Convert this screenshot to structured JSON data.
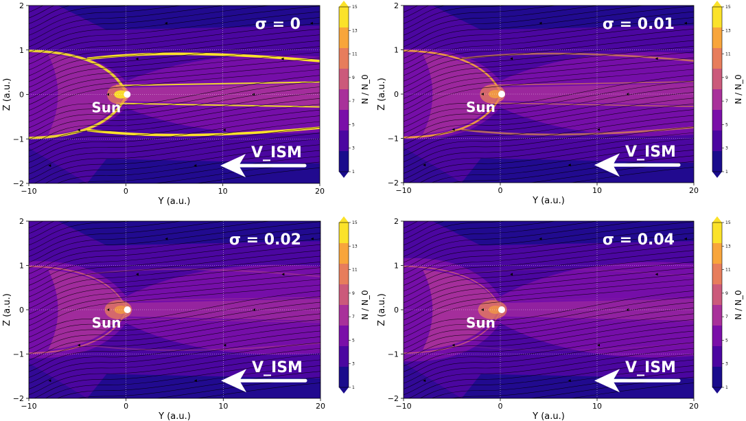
{
  "chart_data": [
    {
      "type": "heatmap",
      "title": "σ = 0",
      "xlabel": "Y (a.u.)",
      "ylabel": "Z (a.u.)",
      "xlim": [
        -10,
        20
      ],
      "ylim": [
        -2,
        2
      ],
      "xticks": [
        "−10",
        "0",
        "10",
        "20"
      ],
      "yticks": [
        "−2",
        "−1",
        "0",
        "1",
        "2"
      ],
      "sun_label": "Sun",
      "sun_position": [
        0,
        0
      ],
      "flow_label": "V_ISM",
      "colorbar": {
        "label": "N / N_0",
        "ticks": [
          "1",
          "3",
          "5",
          "7",
          "9",
          "11",
          "13",
          "15"
        ],
        "levels": [
          1,
          3,
          5,
          7,
          9,
          11,
          13,
          15
        ]
      },
      "sharpness": 1.0,
      "spread": 0.0
    },
    {
      "type": "heatmap",
      "title": "σ = 0.01",
      "xlabel": "Y (a.u.)",
      "ylabel": "Z (a.u.)",
      "xlim": [
        -10,
        20
      ],
      "ylim": [
        -2,
        2
      ],
      "xticks": [
        "−10",
        "0",
        "10",
        "20"
      ],
      "yticks": [
        "−2",
        "−1",
        "0",
        "1",
        "2"
      ],
      "sun_label": "Sun",
      "sun_position": [
        0,
        0
      ],
      "flow_label": "V_ISM",
      "colorbar": {
        "label": "N / N_0",
        "ticks": [
          "1",
          "3",
          "5",
          "7",
          "9",
          "11",
          "13",
          "15"
        ],
        "levels": [
          1,
          3,
          5,
          7,
          9,
          11,
          13,
          15
        ]
      },
      "sharpness": 0.6,
      "spread": 0.3
    },
    {
      "type": "heatmap",
      "title": "σ = 0.02",
      "xlabel": "Y (a.u.)",
      "ylabel": "Z (a.u.)",
      "xlim": [
        -10,
        20
      ],
      "ylim": [
        -2,
        2
      ],
      "xticks": [
        "−10",
        "0",
        "10",
        "20"
      ],
      "yticks": [
        "−2",
        "−1",
        "0",
        "1",
        "2"
      ],
      "sun_label": "Sun",
      "sun_position": [
        0,
        0
      ],
      "flow_label": "V_ISM",
      "colorbar": {
        "label": "N / N_0",
        "ticks": [
          "1",
          "3",
          "5",
          "7",
          "9",
          "11",
          "13",
          "15"
        ],
        "levels": [
          1,
          3,
          5,
          7,
          9,
          11,
          13,
          15
        ]
      },
      "sharpness": 0.35,
      "spread": 0.6
    },
    {
      "type": "heatmap",
      "title": "σ = 0.04",
      "xlabel": "Y (a.u.)",
      "ylabel": "Z (a.u.)",
      "xlim": [
        -10,
        20
      ],
      "ylim": [
        -2,
        2
      ],
      "xticks": [
        "−10",
        "0",
        "10",
        "20"
      ],
      "yticks": [
        "−2",
        "−1",
        "0",
        "1",
        "2"
      ],
      "sun_label": "Sun",
      "sun_position": [
        0,
        0
      ],
      "flow_label": "V_ISM",
      "colorbar": {
        "label": "N / N_0",
        "ticks": [
          "1",
          "3",
          "5",
          "7",
          "9",
          "11",
          "13",
          "15"
        ],
        "levels": [
          1,
          3,
          5,
          7,
          9,
          11,
          13,
          15
        ]
      },
      "sharpness": 0.15,
      "spread": 0.9
    }
  ],
  "colors": {
    "levels": [
      "#1a0c8c",
      "#4b06a0",
      "#7a0fa8",
      "#a8319a",
      "#cb5a7b",
      "#e77d5c",
      "#f8a53b",
      "#fbe22a"
    ]
  }
}
